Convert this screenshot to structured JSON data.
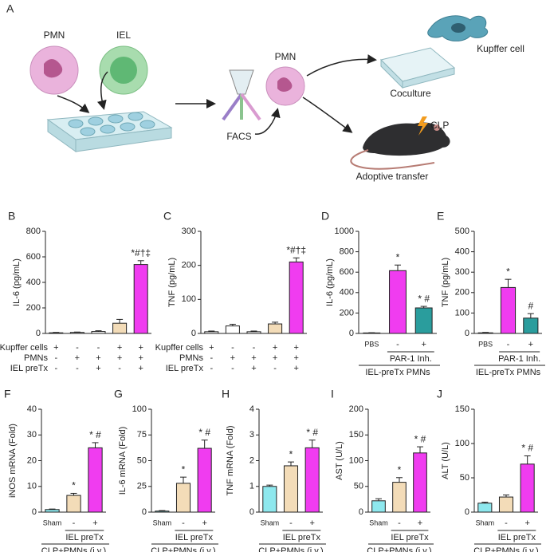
{
  "diagram": {
    "panel": "A",
    "pmn": "PMN",
    "iel": "IEL",
    "facs": "FACS",
    "pmn_sorted": "PMN",
    "kupffer": "Kupffer cell",
    "coculture": "Coculture",
    "clp": "CLP",
    "adoptive": "Adoptive transfer"
  },
  "chart_data": [
    {
      "type": "bar",
      "label": "B",
      "ylabel": "IL-6 (pg/mL)",
      "ylim": [
        0,
        800
      ],
      "yticks": [
        0,
        200,
        400,
        600,
        800
      ],
      "values": [
        5,
        8,
        15,
        80,
        540
      ],
      "errors": [
        3,
        3,
        6,
        30,
        30
      ],
      "colors": [
        "#ffffff",
        "#ffffff",
        "#ffffff",
        "#f3dcb8",
        "#f03cf0"
      ],
      "annotations": [
        null,
        null,
        null,
        null,
        "*#†‡"
      ],
      "rows": [
        {
          "label": "Kupffer cells",
          "marks": [
            "+",
            "-",
            "-",
            "+",
            "+"
          ]
        },
        {
          "label": "PMNs",
          "marks": [
            "-",
            "+",
            "+",
            "+",
            "+"
          ]
        },
        {
          "label": "IEL preTx",
          "marks": [
            "-",
            "-",
            "+",
            "-",
            "+"
          ]
        }
      ]
    },
    {
      "type": "bar",
      "label": "C",
      "ylabel": "TNF (pg/mL)",
      "ylim": [
        0,
        300
      ],
      "yticks": [
        0,
        100,
        200,
        300
      ],
      "values": [
        5,
        22,
        5,
        28,
        210
      ],
      "errors": [
        2,
        5,
        2,
        5,
        12
      ],
      "colors": [
        "#ffffff",
        "#ffffff",
        "#ffffff",
        "#f3dcb8",
        "#f03cf0"
      ],
      "annotations": [
        null,
        null,
        null,
        null,
        "*#†‡"
      ],
      "rows": [
        {
          "label": "Kupffer cells",
          "marks": [
            "+",
            "-",
            "-",
            "+",
            "+"
          ]
        },
        {
          "label": "PMNs",
          "marks": [
            "-",
            "+",
            "+",
            "+",
            "+"
          ]
        },
        {
          "label": "IEL preTx",
          "marks": [
            "-",
            "-",
            "+",
            "-",
            "+"
          ]
        }
      ]
    },
    {
      "type": "bar",
      "label": "D",
      "ylabel": "IL-6 (pg/mL)",
      "ylim": [
        0,
        1000
      ],
      "yticks": [
        0,
        200,
        400,
        600,
        800,
        1000
      ],
      "categories": [
        "PBS",
        "-",
        "+"
      ],
      "values": [
        5,
        615,
        250
      ],
      "errors": [
        2,
        55,
        15
      ],
      "colors": [
        "#ffffff",
        "#f03cf0",
        "#2a9d9d"
      ],
      "annotations": [
        null,
        "*",
        "* #"
      ],
      "group_label": "PAR-1 Inh.",
      "footer": "IEL-preTx PMNs"
    },
    {
      "type": "bar",
      "label": "E",
      "ylabel": "TNF (pg/mL)",
      "ylim": [
        0,
        500
      ],
      "yticks": [
        0,
        100,
        200,
        300,
        400,
        500
      ],
      "categories": [
        "PBS",
        "-",
        "+"
      ],
      "values": [
        3,
        225,
        75
      ],
      "errors": [
        2,
        40,
        22
      ],
      "colors": [
        "#ffffff",
        "#f03cf0",
        "#2a9d9d"
      ],
      "annotations": [
        null,
        "*",
        "#"
      ],
      "group_label": "PAR-1 Inh.",
      "footer": "IEL-preTx PMNs"
    },
    {
      "type": "bar",
      "label": "F",
      "ylabel": "iNOS mRNA (Fold)",
      "ylim": [
        0,
        40
      ],
      "yticks": [
        0,
        10,
        20,
        30,
        40
      ],
      "categories": [
        "Sham",
        "-",
        "+"
      ],
      "values": [
        1,
        6.5,
        25
      ],
      "errors": [
        0.2,
        0.8,
        2
      ],
      "colors": [
        "#8ee8ee",
        "#f3dcb8",
        "#f03cf0"
      ],
      "annotations": [
        null,
        "*",
        "* #"
      ],
      "group_label": "IEL preTx",
      "footer": "CLP+PMNs (i.v.)"
    },
    {
      "type": "bar",
      "label": "G",
      "ylabel": "IL-6 mRNA (Fold)",
      "ylim": [
        0,
        100
      ],
      "yticks": [
        0,
        25,
        50,
        75,
        100
      ],
      "categories": [
        "Sham",
        "-",
        "+"
      ],
      "values": [
        1,
        28,
        62
      ],
      "errors": [
        0.5,
        6,
        8
      ],
      "colors": [
        "#8ee8ee",
        "#f3dcb8",
        "#f03cf0"
      ],
      "annotations": [
        null,
        "*",
        "* #"
      ],
      "group_label": "IEL preTx",
      "footer": "CLP+PMNs (i.v.)"
    },
    {
      "type": "bar",
      "label": "H",
      "ylabel": "TNF mRNA (Fold)",
      "ylim": [
        0,
        4
      ],
      "yticks": [
        0,
        1,
        2,
        3,
        4
      ],
      "categories": [
        "Sham",
        "-",
        "+"
      ],
      "values": [
        1.0,
        1.8,
        2.5
      ],
      "errors": [
        0.05,
        0.15,
        0.3
      ],
      "colors": [
        "#8ee8ee",
        "#f3dcb8",
        "#f03cf0"
      ],
      "annotations": [
        null,
        "*",
        "* #"
      ],
      "group_label": "IEL preTx",
      "footer": "CLP+PMNs (i.v.)"
    },
    {
      "type": "bar",
      "label": "I",
      "ylabel": "AST (U/L)",
      "ylim": [
        0,
        200
      ],
      "yticks": [
        0,
        50,
        100,
        150,
        200
      ],
      "categories": [
        "Sham",
        "-",
        "+"
      ],
      "values": [
        22,
        58,
        115
      ],
      "errors": [
        4,
        9,
        12
      ],
      "colors": [
        "#8ee8ee",
        "#f3dcb8",
        "#f03cf0"
      ],
      "annotations": [
        null,
        "*",
        "* #"
      ],
      "group_label": "IEL preTx",
      "footer": "CLP+PMNs (i.v.)"
    },
    {
      "type": "bar",
      "label": "J",
      "ylabel": "ALT (U/L)",
      "ylim": [
        0,
        150
      ],
      "yticks": [
        0,
        50,
        100,
        150
      ],
      "categories": [
        "Sham",
        "-",
        "+"
      ],
      "values": [
        13,
        22,
        70
      ],
      "errors": [
        1.5,
        3,
        12
      ],
      "colors": [
        "#8ee8ee",
        "#f3dcb8",
        "#f03cf0"
      ],
      "annotations": [
        null,
        null,
        "* #"
      ],
      "group_label": "IEL preTx",
      "footer": "CLP+PMNs (i.v.)"
    }
  ]
}
